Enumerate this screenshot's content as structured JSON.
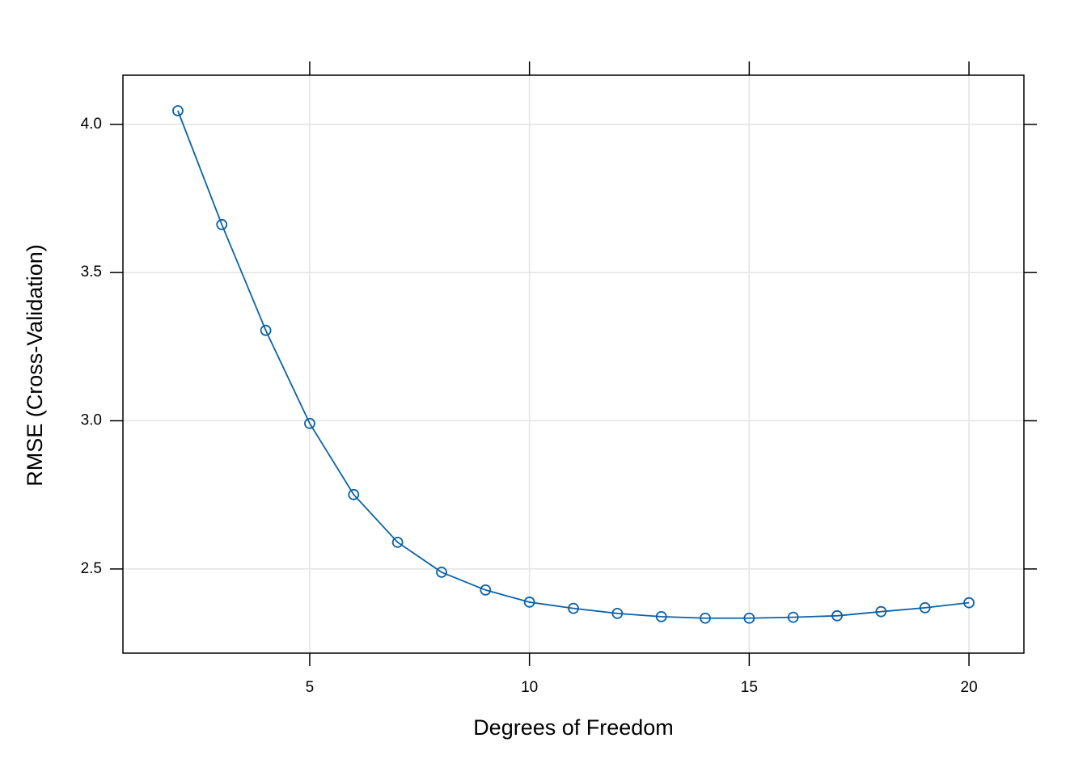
{
  "chart_data": {
    "type": "line",
    "x_label": "Degrees of Freedom",
    "y_label": "RMSE (Cross-Validation)",
    "x": [
      2,
      3,
      4,
      5,
      6,
      7,
      8,
      9,
      10,
      11,
      12,
      13,
      14,
      15,
      16,
      17,
      18,
      19,
      20
    ],
    "series": [
      {
        "color": "#0c62a8",
        "values": [
          4.046,
          3.662,
          3.305,
          2.991,
          2.751,
          2.59,
          2.489,
          2.429,
          2.388,
          2.367,
          2.35,
          2.339,
          2.334,
          2.334,
          2.337,
          2.342,
          2.356,
          2.369,
          2.386
        ]
      }
    ],
    "xlim": [
      0.75,
      21.25
    ],
    "ylim": [
      2.216,
      4.166
    ],
    "xticks": [
      5,
      10,
      15,
      20
    ],
    "yticks": [
      2.5,
      {
        "value": 3.0,
        "label": "3.0"
      },
      3.5,
      {
        "value": 4.0,
        "label": "4.0"
      }
    ],
    "grid": true
  }
}
